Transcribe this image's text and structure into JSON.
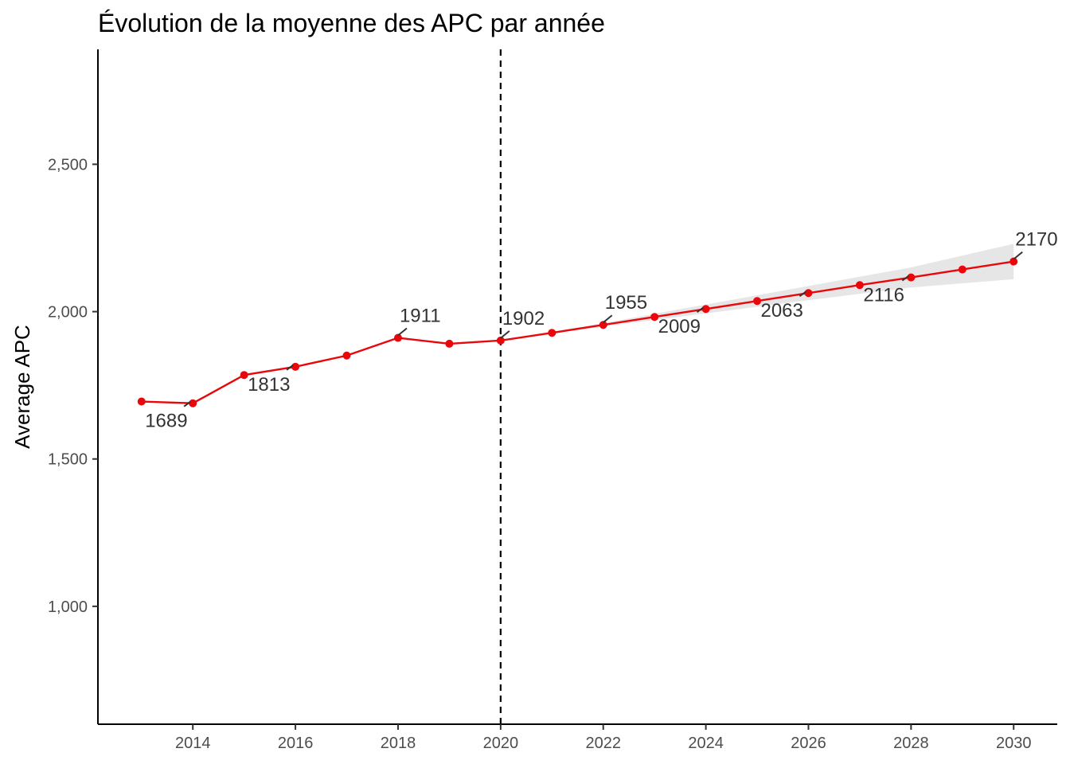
{
  "chart_data": {
    "type": "line",
    "title": "Évolution de la moyenne des APC par année",
    "xlabel": "",
    "ylabel": "Average APC",
    "xlim": [
      2012.15,
      2030.85
    ],
    "ylim": [
      600,
      2890
    ],
    "x_ticks": [
      2014,
      2016,
      2018,
      2020,
      2022,
      2024,
      2026,
      2028,
      2030
    ],
    "x_tick_labels": [
      "2014",
      "2016",
      "2018",
      "2020",
      "2022",
      "2024",
      "2026",
      "2028",
      "2030"
    ],
    "y_ticks": [
      1000,
      1500,
      2000,
      2500
    ],
    "y_tick_labels": [
      "1,000",
      "1,500",
      "2,000",
      "2,500"
    ],
    "grid": false,
    "legend": "none",
    "reference_line": {
      "x": 2020,
      "style": "dashed",
      "color": "#000000"
    },
    "series": [
      {
        "color": "#e8070a",
        "points": [
          {
            "x": 2013,
            "y": 1695
          },
          {
            "x": 2014,
            "y": 1689
          },
          {
            "x": 2015,
            "y": 1785
          },
          {
            "x": 2016,
            "y": 1813
          },
          {
            "x": 2017,
            "y": 1851
          },
          {
            "x": 2018,
            "y": 1911
          },
          {
            "x": 2019,
            "y": 1891
          },
          {
            "x": 2020,
            "y": 1902
          },
          {
            "x": 2021,
            "y": 1928
          },
          {
            "x": 2022,
            "y": 1955
          },
          {
            "x": 2023,
            "y": 1982
          },
          {
            "x": 2024,
            "y": 2009
          },
          {
            "x": 2025,
            "y": 2036
          },
          {
            "x": 2026,
            "y": 2063
          },
          {
            "x": 2027,
            "y": 2090
          },
          {
            "x": 2028,
            "y": 2116
          },
          {
            "x": 2029,
            "y": 2143
          },
          {
            "x": 2030,
            "y": 2170
          }
        ]
      }
    ],
    "confidence_band": {
      "color": "#e6e6e6",
      "points": [
        {
          "x": 2020,
          "lower": 1902,
          "upper": 1902
        },
        {
          "x": 2022,
          "lower": 1949,
          "upper": 1961
        },
        {
          "x": 2024,
          "lower": 1994,
          "upper": 2024
        },
        {
          "x": 2026,
          "lower": 2039,
          "upper": 2087
        },
        {
          "x": 2028,
          "lower": 2082,
          "upper": 2150
        },
        {
          "x": 2030,
          "lower": 2110,
          "upper": 2230
        }
      ]
    },
    "data_labels": [
      {
        "x": 2014,
        "y": 1689,
        "text": "1689",
        "position": "below"
      },
      {
        "x": 2016,
        "y": 1813,
        "text": "1813",
        "position": "below"
      },
      {
        "x": 2018,
        "y": 1911,
        "text": "1911",
        "position": "above"
      },
      {
        "x": 2020,
        "y": 1902,
        "text": "1902",
        "position": "above"
      },
      {
        "x": 2022,
        "y": 1955,
        "text": "1955",
        "position": "above"
      },
      {
        "x": 2024,
        "y": 2009,
        "text": "2009",
        "position": "below"
      },
      {
        "x": 2026,
        "y": 2063,
        "text": "2063",
        "position": "below"
      },
      {
        "x": 2028,
        "y": 2116,
        "text": "2116",
        "position": "below"
      },
      {
        "x": 2030,
        "y": 2170,
        "text": "2170",
        "position": "above"
      }
    ]
  }
}
